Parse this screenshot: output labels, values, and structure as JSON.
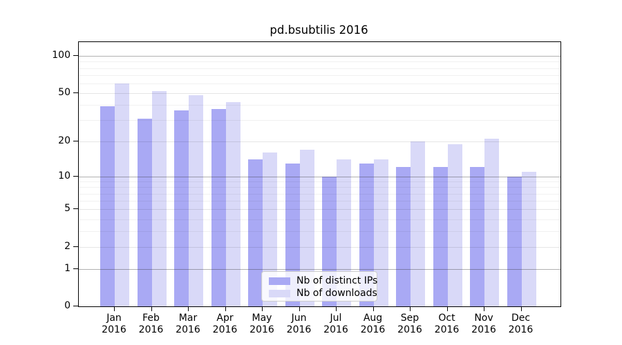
{
  "chart_data": {
    "type": "bar",
    "title": "pd.bsubtilis 2016",
    "categories": [
      "Jan",
      "Feb",
      "Mar",
      "Apr",
      "May",
      "Jun",
      "Jul",
      "Aug",
      "Sep",
      "Oct",
      "Nov",
      "Dec"
    ],
    "year_label": "2016",
    "series": [
      {
        "name": "Nb of distinct IPs",
        "color": "#a9a9f4",
        "values": [
          39,
          31,
          36,
          37,
          14,
          13,
          10,
          13,
          12,
          12,
          12,
          10
        ]
      },
      {
        "name": "Nb of downloads",
        "color": "#d9d9f8",
        "values": [
          60,
          52,
          48,
          42,
          16,
          17,
          14,
          14,
          20,
          19,
          21,
          11
        ]
      }
    ],
    "xlabel": "",
    "ylabel": "",
    "y_axis": {
      "scale": "log1p",
      "ylim": [
        0,
        130
      ],
      "tick_values": [
        0,
        1,
        2,
        5,
        10,
        20,
        50,
        100
      ],
      "tick_labels": [
        "0",
        "1",
        "2",
        "5",
        "10",
        "20",
        "50",
        "100"
      ],
      "major_grid_values": [
        1,
        10,
        100
      ],
      "minor_grid_values": [
        3,
        4,
        6,
        7,
        8,
        9,
        30,
        40,
        60,
        70,
        80,
        90
      ]
    },
    "grid": true,
    "legend": {
      "position": "lower center",
      "entries": [
        "Nb of distinct IPs",
        "Nb of downloads"
      ]
    },
    "colors": {
      "bar_dark": "#a9a9f4",
      "bar_light": "#d9d9f8",
      "background": "#ffffff",
      "axis": "#000000",
      "legend_border": "#cccccc"
    }
  }
}
